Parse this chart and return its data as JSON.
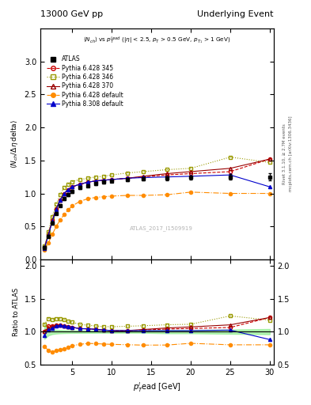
{
  "title_left": "13000 GeV pp",
  "title_right": "Underlying Event",
  "watermark": "ATLAS_2017_I1509919",
  "ylabel_main": "<N_{ch}/ #Delta#eta delta>",
  "ylabel_ratio": "Ratio to ATLAS",
  "xlabel": "p_{T}^{lead} [GeV]",
  "ylim_main": [
    0.0,
    3.5
  ],
  "ylim_ratio": [
    0.5,
    2.1
  ],
  "xlim": [
    1.0,
    30.5
  ],
  "atlas_x": [
    1.5,
    2.0,
    2.5,
    3.0,
    3.5,
    4.0,
    4.5,
    5.0,
    6.0,
    7.0,
    8.0,
    9.0,
    10.0,
    12.0,
    14.0,
    17.0,
    20.0,
    25.0,
    30.0
  ],
  "atlas_y": [
    0.18,
    0.35,
    0.55,
    0.7,
    0.82,
    0.92,
    0.98,
    1.03,
    1.09,
    1.12,
    1.15,
    1.17,
    1.19,
    1.21,
    1.22,
    1.23,
    1.24,
    1.25,
    1.25
  ],
  "atlas_yerr": [
    0.02,
    0.02,
    0.02,
    0.02,
    0.02,
    0.02,
    0.02,
    0.02,
    0.02,
    0.02,
    0.02,
    0.02,
    0.02,
    0.02,
    0.02,
    0.03,
    0.03,
    0.04,
    0.05
  ],
  "p6_345_x": [
    1.5,
    2.0,
    2.5,
    3.0,
    3.5,
    4.0,
    4.5,
    5.0,
    6.0,
    7.0,
    8.0,
    9.0,
    10.0,
    12.0,
    14.0,
    17.0,
    20.0,
    25.0,
    30.0
  ],
  "p6_345_y": [
    0.18,
    0.38,
    0.6,
    0.77,
    0.9,
    1.0,
    1.06,
    1.1,
    1.14,
    1.17,
    1.19,
    1.2,
    1.21,
    1.23,
    1.25,
    1.28,
    1.3,
    1.33,
    1.52
  ],
  "p6_345_color": "#cc0000",
  "p6_346_x": [
    1.5,
    2.0,
    2.5,
    3.0,
    3.5,
    4.0,
    4.5,
    5.0,
    6.0,
    7.0,
    8.0,
    9.0,
    10.0,
    12.0,
    14.0,
    17.0,
    20.0,
    25.0,
    30.0
  ],
  "p6_346_y": [
    0.2,
    0.42,
    0.65,
    0.84,
    0.98,
    1.09,
    1.14,
    1.18,
    1.21,
    1.23,
    1.25,
    1.26,
    1.28,
    1.31,
    1.33,
    1.36,
    1.38,
    1.55,
    1.47
  ],
  "p6_346_color": "#999900",
  "p6_370_x": [
    1.5,
    2.0,
    2.5,
    3.0,
    3.5,
    4.0,
    4.5,
    5.0,
    6.0,
    7.0,
    8.0,
    9.0,
    10.0,
    12.0,
    14.0,
    17.0,
    20.0,
    25.0,
    30.0
  ],
  "p6_370_y": [
    0.18,
    0.37,
    0.59,
    0.77,
    0.9,
    1.0,
    1.06,
    1.1,
    1.14,
    1.17,
    1.19,
    1.2,
    1.21,
    1.23,
    1.26,
    1.3,
    1.33,
    1.38,
    1.52
  ],
  "p6_370_color": "#990000",
  "p6_def_x": [
    1.5,
    2.0,
    2.5,
    3.0,
    3.5,
    4.0,
    4.5,
    5.0,
    6.0,
    7.0,
    8.0,
    9.0,
    10.0,
    12.0,
    14.0,
    17.0,
    20.0,
    25.0,
    30.0
  ],
  "p6_def_y": [
    0.14,
    0.25,
    0.38,
    0.5,
    0.6,
    0.68,
    0.75,
    0.81,
    0.88,
    0.92,
    0.94,
    0.95,
    0.96,
    0.97,
    0.97,
    0.98,
    1.02,
    1.0,
    1.0
  ],
  "p6_def_color": "#ff8c00",
  "p8_def_x": [
    1.5,
    2.0,
    2.5,
    3.0,
    3.5,
    4.0,
    4.5,
    5.0,
    6.0,
    7.0,
    8.0,
    9.0,
    10.0,
    12.0,
    14.0,
    17.0,
    20.0,
    25.0,
    30.0
  ],
  "p8_def_y": [
    0.17,
    0.36,
    0.58,
    0.76,
    0.9,
    1.0,
    1.06,
    1.1,
    1.14,
    1.17,
    1.19,
    1.2,
    1.21,
    1.23,
    1.24,
    1.25,
    1.26,
    1.28,
    1.1
  ],
  "p8_def_color": "#0000cc",
  "ratio_band_color": "#90ee90",
  "ratio_line_color": "#007700"
}
